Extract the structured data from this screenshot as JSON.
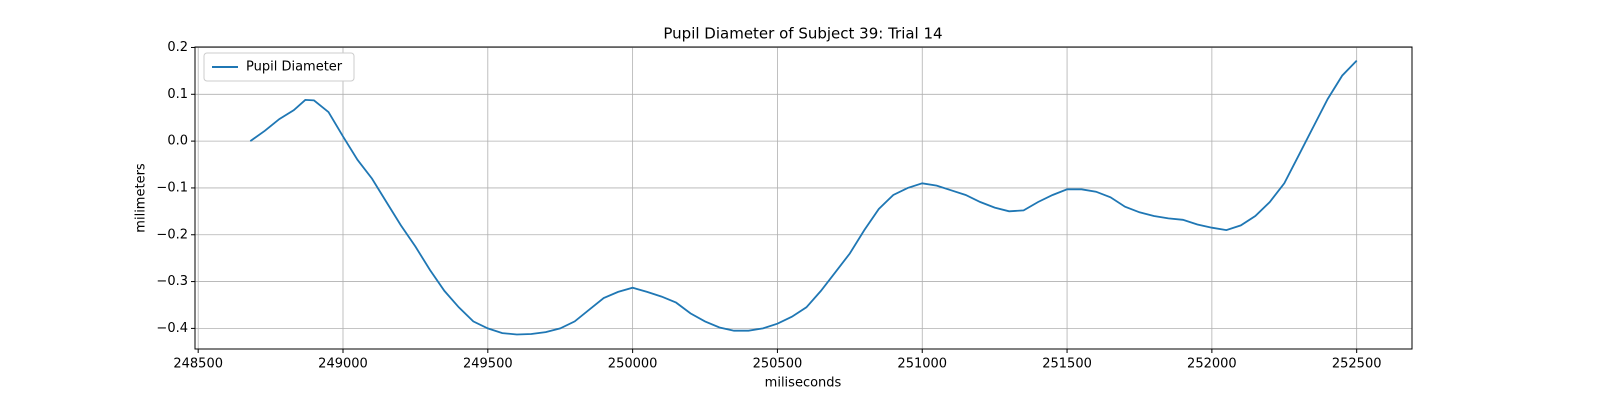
{
  "chart_data": {
    "type": "line",
    "title": "Pupil Diameter of Subject 39: Trial 14",
    "xlabel": "miliseconds",
    "ylabel": "milimeters",
    "x": [
      248680,
      248730,
      248780,
      248830,
      248870,
      248900,
      248950,
      249000,
      249050,
      249100,
      249150,
      249200,
      249250,
      249300,
      249350,
      249400,
      249450,
      249500,
      249550,
      249600,
      249650,
      249700,
      249750,
      249800,
      249850,
      249900,
      249950,
      250000,
      250050,
      250100,
      250150,
      250200,
      250250,
      250300,
      250350,
      250400,
      250450,
      250500,
      250550,
      250600,
      250650,
      250700,
      250750,
      250800,
      250850,
      250900,
      250950,
      251000,
      251050,
      251100,
      251150,
      251200,
      251250,
      251300,
      251350,
      251400,
      251450,
      251500,
      251550,
      251600,
      251650,
      251700,
      251750,
      251800,
      251850,
      251900,
      251950,
      252000,
      252050,
      252100,
      252150,
      252200,
      252250,
      252300,
      252350,
      252400,
      252450,
      252500
    ],
    "series": [
      {
        "name": "Pupil Diameter",
        "color": "#1f77b4",
        "values": [
          0.0,
          0.022,
          0.047,
          0.066,
          0.088,
          0.087,
          0.062,
          0.01,
          -0.04,
          -0.08,
          -0.13,
          -0.18,
          -0.225,
          -0.275,
          -0.32,
          -0.355,
          -0.385,
          -0.4,
          -0.41,
          -0.413,
          -0.412,
          -0.408,
          -0.4,
          -0.385,
          -0.36,
          -0.335,
          -0.322,
          -0.313,
          -0.322,
          -0.332,
          -0.345,
          -0.368,
          -0.385,
          -0.398,
          -0.405,
          -0.405,
          -0.4,
          -0.39,
          -0.375,
          -0.355,
          -0.32,
          -0.28,
          -0.24,
          -0.19,
          -0.145,
          -0.115,
          -0.1,
          -0.09,
          -0.095,
          -0.105,
          -0.115,
          -0.13,
          -0.142,
          -0.15,
          -0.148,
          -0.13,
          -0.115,
          -0.103,
          -0.103,
          -0.108,
          -0.12,
          -0.14,
          -0.152,
          -0.16,
          -0.165,
          -0.168,
          -0.178,
          -0.185,
          -0.19,
          -0.18,
          -0.16,
          -0.13,
          -0.09,
          -0.03,
          0.03,
          0.09,
          0.14,
          0.172
        ]
      }
    ],
    "xlim": [
      248489,
      252691
    ],
    "ylim": [
      -0.444,
      0.201
    ],
    "xticks": [
      248500,
      249000,
      249500,
      250000,
      250500,
      251000,
      251500,
      252000,
      252500
    ],
    "yticks": [
      {
        "value": -0.4,
        "label": "−0.4"
      },
      {
        "value": -0.3,
        "label": "−0.3"
      },
      {
        "value": -0.2,
        "label": "−0.2"
      },
      {
        "value": -0.1,
        "label": "−0.1"
      },
      {
        "value": 0,
        "label": "0.0"
      },
      0.1,
      0.2
    ],
    "grid": true,
    "legend": "upper left"
  }
}
